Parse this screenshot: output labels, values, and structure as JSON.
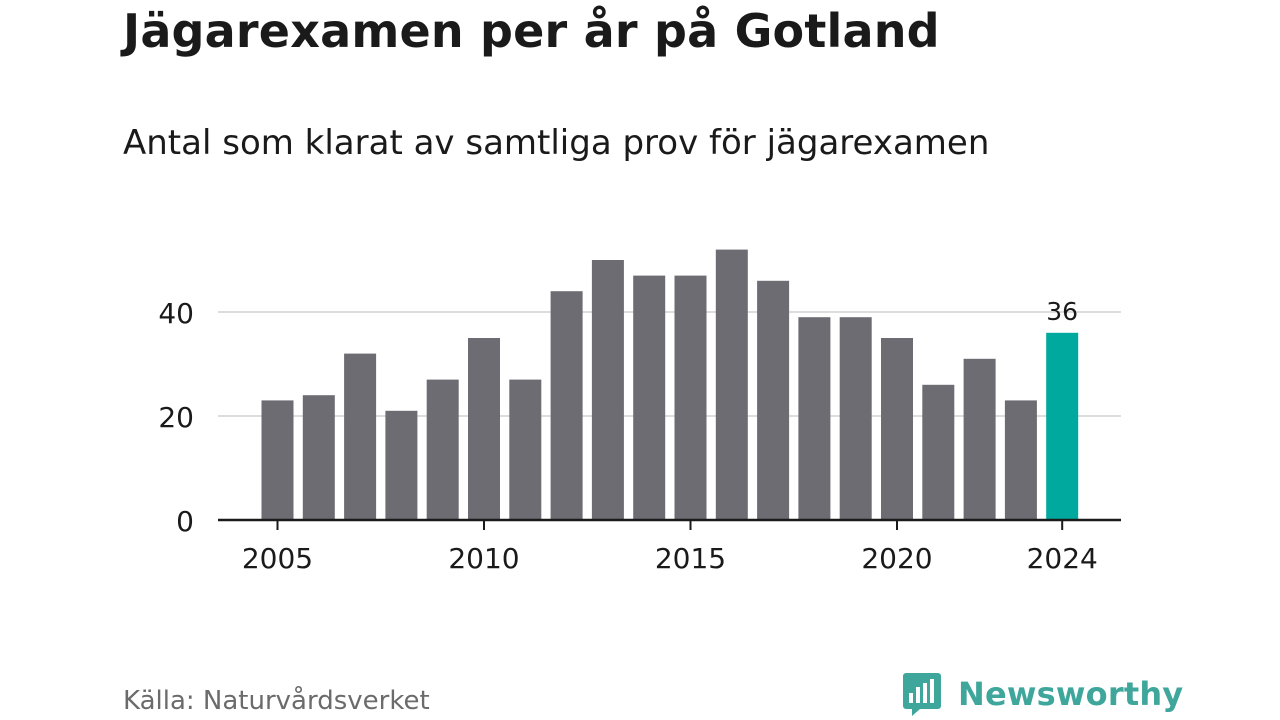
{
  "header": {
    "title": "Jägarexamen per år på Gotland",
    "subtitle": "Antal som klarat av samtliga prov för jägarexamen"
  },
  "footer": {
    "source": "Källa: Naturvårdsverket",
    "brand": "Newsworthy",
    "brand_icon": "bar-chart-speech-bubble-icon"
  },
  "colors": {
    "bar": "#6d6c73",
    "highlight": "#00a99d",
    "grid": "#dddddd",
    "axis": "#1a1a1a",
    "brand": "#3fa69c"
  },
  "chart_data": {
    "type": "bar",
    "categories": [
      "2005",
      "2006",
      "2007",
      "2008",
      "2009",
      "2010",
      "2011",
      "2012",
      "2013",
      "2014",
      "2015",
      "2016",
      "2017",
      "2018",
      "2019",
      "2020",
      "2021",
      "2022",
      "2023",
      "2024"
    ],
    "values": [
      23,
      24,
      32,
      21,
      27,
      35,
      27,
      44,
      50,
      47,
      47,
      52,
      46,
      39,
      39,
      35,
      26,
      31,
      23,
      36
    ],
    "highlight_category": "2024",
    "highlight_label": "36",
    "ylim": [
      0,
      55
    ],
    "yticks": [
      0,
      20,
      40
    ],
    "xticks": [
      "2005",
      "2010",
      "2015",
      "2020",
      "2024"
    ],
    "grid": true,
    "xlabel": "",
    "ylabel": ""
  }
}
